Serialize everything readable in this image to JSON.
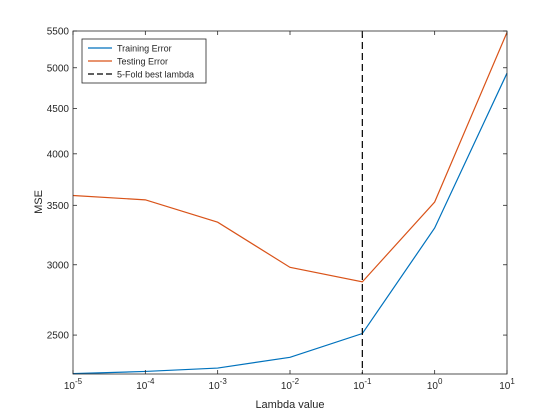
{
  "chart_data": {
    "type": "line",
    "xscale": "log",
    "yscale": "log",
    "xlabel": "Lambda value",
    "ylabel": "MSE",
    "xlim": [
      1e-05,
      10
    ],
    "ylim": [
      2260,
      5500
    ],
    "grid": false,
    "legend_position": "top-left",
    "x_ticks": [
      {
        "value": 1e-05,
        "base": "10",
        "exp": "-5"
      },
      {
        "value": 0.0001,
        "base": "10",
        "exp": "-4"
      },
      {
        "value": 0.001,
        "base": "10",
        "exp": "-3"
      },
      {
        "value": 0.01,
        "base": "10",
        "exp": "-2"
      },
      {
        "value": 0.1,
        "base": "10",
        "exp": "-1"
      },
      {
        "value": 1,
        "base": "10",
        "exp": "0"
      },
      {
        "value": 10,
        "base": "10",
        "exp": "1"
      }
    ],
    "y_ticks": [
      2500,
      3000,
      3500,
      4000,
      4500,
      5000,
      5500
    ],
    "series": [
      {
        "name": "Training Error",
        "color": "#0072bd",
        "style": "solid",
        "x": [
          1e-05,
          0.0001,
          0.001,
          0.01,
          0.1,
          1,
          10
        ],
        "y": [
          2262,
          2275,
          2295,
          2360,
          2510,
          3300,
          4930
        ]
      },
      {
        "name": "Testing Error",
        "color": "#d95319",
        "style": "solid",
        "x": [
          1e-05,
          0.0001,
          0.001,
          0.01,
          0.1,
          1,
          10
        ],
        "y": [
          3590,
          3550,
          3350,
          2980,
          2870,
          3530,
          5480
        ]
      },
      {
        "name": "5-Fold best lambda",
        "color": "#000000",
        "style": "dashed",
        "vertical_x": 0.1
      }
    ]
  }
}
